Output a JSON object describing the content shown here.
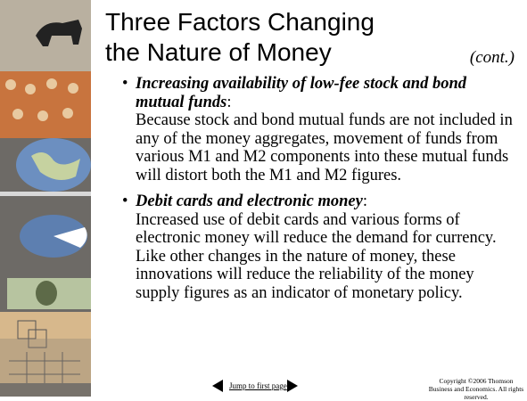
{
  "title": {
    "lines": [
      "Three Factors Changing",
      "the Nature of Money"
    ],
    "note": "(cont.)"
  },
  "bullets": [
    {
      "heading": "Increasing availability of low-fee stock and bond mutual funds",
      "suffix": ":",
      "text": "Because stock and bond mutual funds are not included in any of the money aggregates, movement of funds from various M1 and M2 components into these mutual funds will distort both the M1 and M2 figures."
    },
    {
      "heading": "Debit cards and electronic money",
      "suffix": ":",
      "text": "Increased use of debit cards and various forms of electronic money will reduce the demand for currency. Like other changes in the nature of money, these innovations will reduce the reliability of the money supply figures as an indicator of monetary policy."
    }
  ],
  "footer": {
    "link": "Jump to first page",
    "copyright": "Copyright ©2006  Thomson Business and Economics. All rights reserved."
  }
}
